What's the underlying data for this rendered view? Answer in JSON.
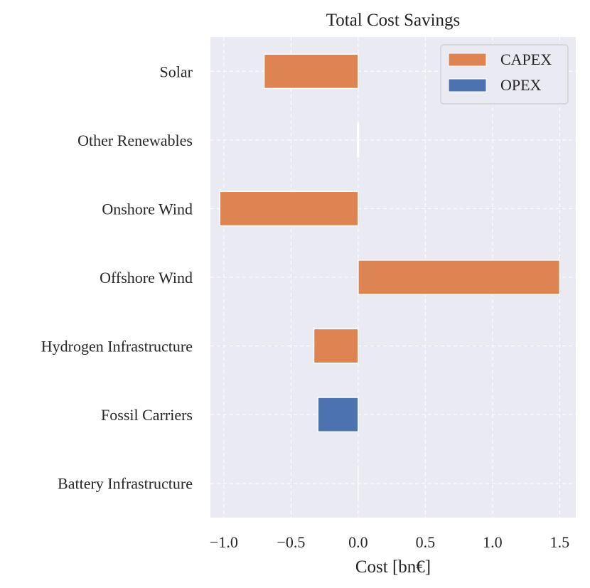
{
  "chart_data": {
    "type": "bar",
    "orientation": "horizontal",
    "stacked": true,
    "title": "Total Cost Savings",
    "xlabel": "Cost [bn€]",
    "ylabel": "",
    "xlim": [
      -1.1,
      1.62
    ],
    "xticks": [
      -1.0,
      -0.5,
      0.0,
      0.5,
      1.0,
      1.5
    ],
    "xtick_labels": [
      "−1.0",
      "−0.5",
      "0.0",
      "0.5",
      "1.0",
      "1.5"
    ],
    "categories": [
      "Solar",
      "Other Renewables",
      "Onshore Wind",
      "Offshore Wind",
      "Hydrogen Infrastructure",
      "Fossil Carriers",
      "Battery Infrastructure"
    ],
    "series": [
      {
        "name": "CAPEX",
        "color": "#dd8452",
        "values": [
          -0.7,
          -0.005,
          -1.03,
          1.5,
          -0.33,
          0.0,
          0.0
        ]
      },
      {
        "name": "OPEX",
        "color": "#4c72b0",
        "values": [
          0.0,
          0.0,
          0.0,
          0.0,
          0.0,
          -0.3,
          0.0
        ]
      }
    ],
    "grid": true,
    "legend_position": "top-right",
    "background_color": "#eaeaf2",
    "grid_color": "#ffffff"
  }
}
